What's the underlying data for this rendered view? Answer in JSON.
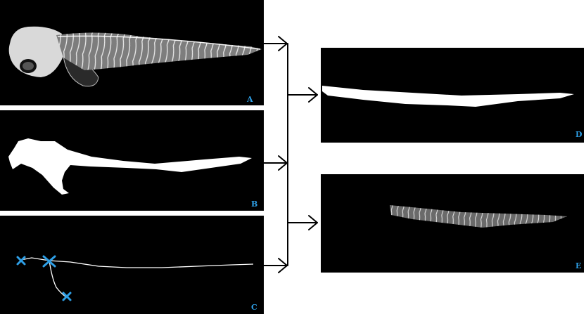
{
  "panels": {
    "a": {
      "label": "A"
    },
    "b": {
      "label": "B"
    },
    "c": {
      "label": "C"
    },
    "d": {
      "label": "D"
    },
    "e": {
      "label": "E"
    }
  },
  "colors": {
    "label": "#2e9fe6",
    "marker": "#2e9fe6",
    "background": "#000000",
    "arrow": "#000000"
  }
}
